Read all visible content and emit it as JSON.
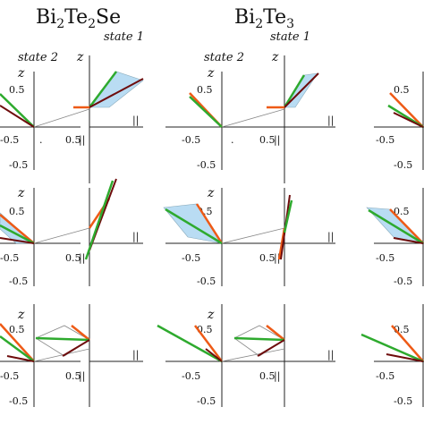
{
  "columns": [
    {
      "title_base": "Bi",
      "title_sub1": "2",
      "title_mid": "Te",
      "title_sub2": "2",
      "title_tail": "Se"
    },
    {
      "title_base": "Bi",
      "title_sub1": "2",
      "title_mid": "Te",
      "title_sub2": "3",
      "title_tail": ""
    }
  ],
  "state_labels": {
    "state1": "state 1",
    "state2": "state 2"
  },
  "axis": {
    "z_label": "z",
    "parallel_label": "||"
  },
  "ticks": {
    "pos": "0.5",
    "neg": "-0.5",
    "dot": "."
  },
  "colors": {
    "green": "#2eaa2e",
    "orange": "#ee5a16",
    "darkred": "#6e0c0c",
    "fill": "#b9dcf3",
    "grid": "#888888"
  }
}
